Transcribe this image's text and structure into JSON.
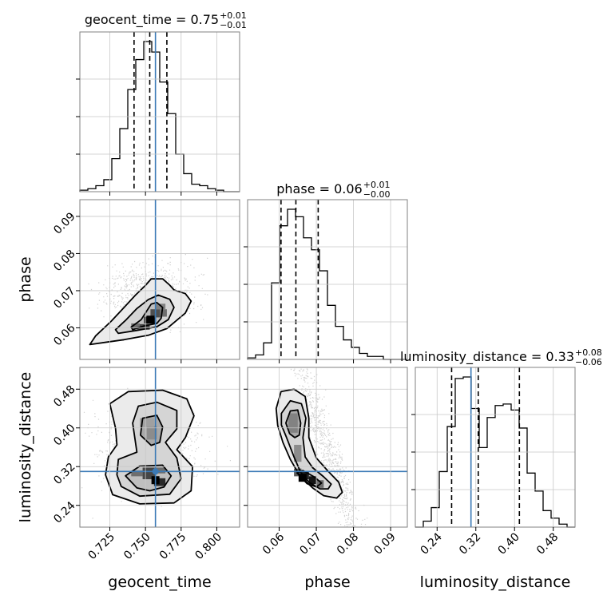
{
  "chart_data": {
    "type": "corner",
    "parameters": [
      "geocent_time",
      "phase",
      "luminosity_distance"
    ],
    "truth_color": "#3b7ab6",
    "titles": [
      {
        "name": "geocent_time",
        "value": "0.75",
        "plus": "+0.01",
        "minus": "−0.01"
      },
      {
        "name": "phase",
        "value": "0.06",
        "plus": "+0.01",
        "minus": "−0.00"
      },
      {
        "name": "luminosity_distance",
        "value": "0.33",
        "plus": "+0.08",
        "minus": "−0.06"
      }
    ],
    "axes": {
      "geocent_time": {
        "range": [
          0.704,
          0.816
        ],
        "ticks": [
          0.725,
          0.75,
          0.775,
          0.8
        ],
        "tick_labels": [
          "0.725",
          "0.750",
          "0.775",
          "0.800"
        ],
        "truth": 0.757,
        "quantiles": [
          0.742,
          0.753,
          0.765
        ]
      },
      "phase": {
        "range": [
          0.0515,
          0.0945
        ],
        "ticks": [
          0.06,
          0.07,
          0.08,
          0.09
        ],
        "tick_labels": [
          "0.06",
          "0.07",
          "0.08",
          "0.09"
        ],
        "quantiles": [
          0.0605,
          0.0645,
          0.0705
        ]
      },
      "luminosity_distance": {
        "range": [
          0.195,
          0.525
        ],
        "ticks": [
          0.24,
          0.32,
          0.4,
          0.48
        ],
        "tick_labels": [
          "0.24",
          "0.32",
          "0.40",
          "0.48"
        ],
        "truth": 0.31,
        "quantiles": [
          0.27,
          0.325,
          0.41
        ]
      }
    },
    "histograms": [
      {
        "parameter": "geocent_time",
        "bin_edges": [
          0.704,
          0.7096,
          0.7152,
          0.7208,
          0.7264,
          0.732,
          0.7376,
          0.7432,
          0.7488,
          0.7544,
          0.76,
          0.7656,
          0.7712,
          0.7768,
          0.7824,
          0.788,
          0.7936,
          0.7992,
          0.8048,
          0.8104,
          0.816
        ],
        "heights": [
          0.01,
          0.02,
          0.04,
          0.08,
          0.22,
          0.42,
          0.68,
          0.88,
          1.0,
          0.93,
          0.73,
          0.52,
          0.25,
          0.12,
          0.05,
          0.04,
          0.02,
          0.01,
          0.0,
          0.0
        ]
      },
      {
        "parameter": "phase",
        "bin_edges": [
          0.0515,
          0.05365,
          0.0558,
          0.05795,
          0.0601,
          0.06225,
          0.0644,
          0.06655,
          0.0687,
          0.07085,
          0.073,
          0.07515,
          0.0773,
          0.07945,
          0.0816,
          0.08375,
          0.0859,
          0.08805,
          0.0902,
          0.09235,
          0.0945
        ],
        "heights": [
          0.01,
          0.03,
          0.11,
          0.51,
          0.89,
          1.0,
          0.95,
          0.81,
          0.73,
          0.59,
          0.36,
          0.22,
          0.13,
          0.08,
          0.04,
          0.02,
          0.02,
          0.0,
          0.0,
          0.0
        ]
      },
      {
        "parameter": "luminosity_distance",
        "bin_edges": [
          0.195,
          0.2115,
          0.228,
          0.2445,
          0.261,
          0.2775,
          0.294,
          0.3105,
          0.327,
          0.3435,
          0.36,
          0.3765,
          0.393,
          0.4095,
          0.426,
          0.4425,
          0.459,
          0.4755,
          0.492,
          0.5085,
          0.525
        ],
        "heights": [
          0.0,
          0.04,
          0.13,
          0.37,
          0.67,
          0.99,
          1.0,
          0.79,
          0.53,
          0.73,
          0.81,
          0.82,
          0.78,
          0.66,
          0.36,
          0.24,
          0.11,
          0.06,
          0.02,
          0.0
        ]
      }
    ],
    "pairs": [
      {
        "x": "geocent_time",
        "y": "phase",
        "mode": [
          0.7535,
          0.0622
        ],
        "contours": [
          [
            [
              0.741,
              0.0595
            ],
            [
              0.749,
              0.0605
            ],
            [
              0.758,
              0.0612
            ],
            [
              0.761,
              0.0626
            ],
            [
              0.762,
              0.0655
            ],
            [
              0.758,
              0.0668
            ],
            [
              0.754,
              0.0664
            ],
            [
              0.747,
              0.0622
            ],
            [
              0.74,
              0.0602
            ]
          ],
          [
            [
              0.731,
              0.0585
            ],
            [
              0.744,
              0.0593
            ],
            [
              0.758,
              0.0603
            ],
            [
              0.766,
              0.0622
            ],
            [
              0.77,
              0.0655
            ],
            [
              0.767,
              0.0677
            ],
            [
              0.759,
              0.0688
            ],
            [
              0.752,
              0.0676
            ],
            [
              0.744,
              0.0652
            ],
            [
              0.736,
              0.062
            ],
            [
              0.729,
              0.0595
            ]
          ],
          [
            [
              0.711,
              0.0555
            ],
            [
              0.735,
              0.0568
            ],
            [
              0.752,
              0.058
            ],
            [
              0.765,
              0.0598
            ],
            [
              0.778,
              0.064
            ],
            [
              0.782,
              0.0672
            ],
            [
              0.778,
              0.0692
            ],
            [
              0.77,
              0.0702
            ],
            [
              0.767,
              0.0715
            ],
            [
              0.762,
              0.0732
            ],
            [
              0.754,
              0.0732
            ],
            [
              0.75,
              0.0714
            ],
            [
              0.743,
              0.0688
            ],
            [
              0.735,
              0.0655
            ],
            [
              0.726,
              0.0618
            ],
            [
              0.715,
              0.0578
            ]
          ]
        ],
        "cells": [
          {
            "x": [
              0.744,
              0.753
            ],
            "y": [
              0.0595,
              0.061
            ],
            "shade": 0.35
          },
          {
            "x": [
              0.749,
              0.7575
            ],
            "y": [
              0.0612,
              0.063
            ],
            "shade": 0.15
          },
          {
            "x": [
              0.7535,
              0.7605
            ],
            "y": [
              0.0628,
              0.065
            ],
            "shade": 0.4
          },
          {
            "x": [
              0.76,
              0.765
            ],
            "y": [
              0.063,
              0.065
            ],
            "shade": 0.55
          },
          {
            "x": [
              0.757,
              0.764
            ],
            "y": [
              0.065,
              0.0665
            ],
            "shade": 0.65
          },
          {
            "x": [
              0.74,
              0.746
            ],
            "y": [
              0.0598,
              0.0612
            ],
            "shade": 0.55
          }
        ],
        "scatter_region": {
          "x": [
            0.714,
            0.79
          ],
          "y": [
            0.0545,
            0.0835
          ],
          "slope": 0.00042
        }
      },
      {
        "x": "geocent_time",
        "y": "luminosity_distance",
        "mode": [
          0.757,
          0.292
        ],
        "contours": [
          [
            [
              0.754,
              0.364
            ],
            [
              0.7465,
              0.385
            ],
            [
              0.748,
              0.42
            ],
            [
              0.758,
              0.426
            ],
            [
              0.762,
              0.402
            ],
            [
              0.76,
              0.37
            ]
          ],
          [
            [
              0.744,
              0.276
            ],
            [
              0.736,
              0.301
            ],
            [
              0.746,
              0.321
            ],
            [
              0.762,
              0.323
            ],
            [
              0.768,
              0.301
            ],
            [
              0.763,
              0.278
            ],
            [
              0.753,
              0.27
            ]
          ],
          [
            [
              0.73,
              0.303
            ],
            [
              0.731,
              0.335
            ],
            [
              0.744,
              0.35
            ],
            [
              0.741,
              0.41
            ],
            [
              0.745,
              0.445
            ],
            [
              0.758,
              0.453
            ],
            [
              0.772,
              0.436
            ],
            [
              0.772,
              0.398
            ],
            [
              0.764,
              0.37
            ],
            [
              0.772,
              0.338
            ],
            [
              0.775,
              0.295
            ],
            [
              0.767,
              0.263
            ],
            [
              0.746,
              0.259
            ],
            [
              0.733,
              0.279
            ]
          ],
          [
            [
              0.722,
              0.303
            ],
            [
              0.724,
              0.34
            ],
            [
              0.73,
              0.365
            ],
            [
              0.729,
              0.4
            ],
            [
              0.725,
              0.45
            ],
            [
              0.738,
              0.475
            ],
            [
              0.762,
              0.478
            ],
            [
              0.779,
              0.46
            ],
            [
              0.784,
              0.425
            ],
            [
              0.778,
              0.38
            ],
            [
              0.772,
              0.355
            ],
            [
              0.783,
              0.32
            ],
            [
              0.782,
              0.27
            ],
            [
              0.77,
              0.245
            ],
            [
              0.746,
              0.243
            ],
            [
              0.727,
              0.262
            ]
          ]
        ],
        "cells": [
          {
            "x": [
              0.748,
              0.757
            ],
            "y": [
              0.294,
              0.318
            ],
            "shade": 0.35
          },
          {
            "x": [
              0.756,
              0.764
            ],
            "y": [
              0.306,
              0.318
            ],
            "shade": 0.55
          },
          {
            "x": [
              0.74,
              0.748
            ],
            "y": [
              0.3,
              0.312
            ],
            "shade": 0.55
          },
          {
            "x": [
              0.756,
              0.764
            ],
            "y": [
              0.28,
              0.296
            ],
            "shade": 0.2
          },
          {
            "x": [
              0.751,
              0.758
            ],
            "y": [
              0.376,
              0.404
            ],
            "shade": 0.7
          },
          {
            "x": [
              0.746,
              0.756
            ],
            "y": [
              0.402,
              0.42
            ],
            "shade": 0.8
          }
        ],
        "scatter_region": {
          "x": [
            0.712,
            0.796
          ],
          "y": [
            0.215,
            0.505
          ],
          "slope": 0.0
        }
      },
      {
        "x": "phase",
        "y": "luminosity_distance",
        "mode": [
          0.0663,
          0.297
        ],
        "contours": [
          [
            [
              0.0618,
              0.41
            ],
            [
              0.063,
              0.435
            ],
            [
              0.065,
              0.437
            ],
            [
              0.0658,
              0.41
            ],
            [
              0.0654,
              0.385
            ],
            [
              0.0642,
              0.38
            ],
            [
              0.0628,
              0.388
            ]
          ],
          [
            [
              0.0648,
              0.307
            ],
            [
              0.0664,
              0.312
            ],
            [
              0.0694,
              0.299
            ],
            [
              0.0714,
              0.286
            ],
            [
              0.07,
              0.278
            ],
            [
              0.0675,
              0.285
            ]
          ],
          [
            [
              0.0606,
              0.43
            ],
            [
              0.063,
              0.456
            ],
            [
              0.066,
              0.45
            ],
            [
              0.0672,
              0.42
            ],
            [
              0.0664,
              0.38
            ],
            [
              0.067,
              0.34
            ],
            [
              0.069,
              0.318
            ],
            [
              0.072,
              0.299
            ],
            [
              0.074,
              0.284
            ],
            [
              0.0732,
              0.274
            ],
            [
              0.071,
              0.274
            ],
            [
              0.068,
              0.288
            ],
            [
              0.0658,
              0.308
            ],
            [
              0.064,
              0.34
            ],
            [
              0.062,
              0.38
            ],
            [
              0.0606,
              0.406
            ]
          ],
          [
            [
              0.0592,
              0.44
            ],
            [
              0.0605,
              0.475
            ],
            [
              0.064,
              0.48
            ],
            [
              0.067,
              0.465
            ],
            [
              0.068,
              0.42
            ],
            [
              0.068,
              0.38
            ],
            [
              0.07,
              0.338
            ],
            [
              0.073,
              0.312
            ],
            [
              0.076,
              0.288
            ],
            [
              0.077,
              0.267
            ],
            [
              0.0755,
              0.255
            ],
            [
              0.072,
              0.26
            ],
            [
              0.069,
              0.276
            ],
            [
              0.0655,
              0.302
            ],
            [
              0.063,
              0.335
            ],
            [
              0.061,
              0.37
            ],
            [
              0.0596,
              0.405
            ]
          ]
        ],
        "cells": [
          {
            "x": [
              0.066,
              0.068
            ],
            "y": [
              0.294,
              0.31
            ],
            "shade": 0.15
          },
          {
            "x": [
              0.068,
              0.07
            ],
            "y": [
              0.284,
              0.3
            ],
            "shade": 0.1
          },
          {
            "x": [
              0.064,
              0.066
            ],
            "y": [
              0.3,
              0.316
            ],
            "shade": 0.45
          },
          {
            "x": [
              0.07,
              0.072
            ],
            "y": [
              0.276,
              0.292
            ],
            "shade": 0.55
          },
          {
            "x": [
              0.0625,
              0.065
            ],
            "y": [
              0.39,
              0.43
            ],
            "shade": 0.65
          },
          {
            "x": [
              0.064,
              0.066
            ],
            "y": [
              0.33,
              0.365
            ],
            "shade": 0.7
          }
        ],
        "scatter_region": {
          "x": [
            0.0575,
            0.088
          ],
          "y": [
            0.215,
            0.505
          ],
          "slope": -22.0
        }
      }
    ]
  }
}
